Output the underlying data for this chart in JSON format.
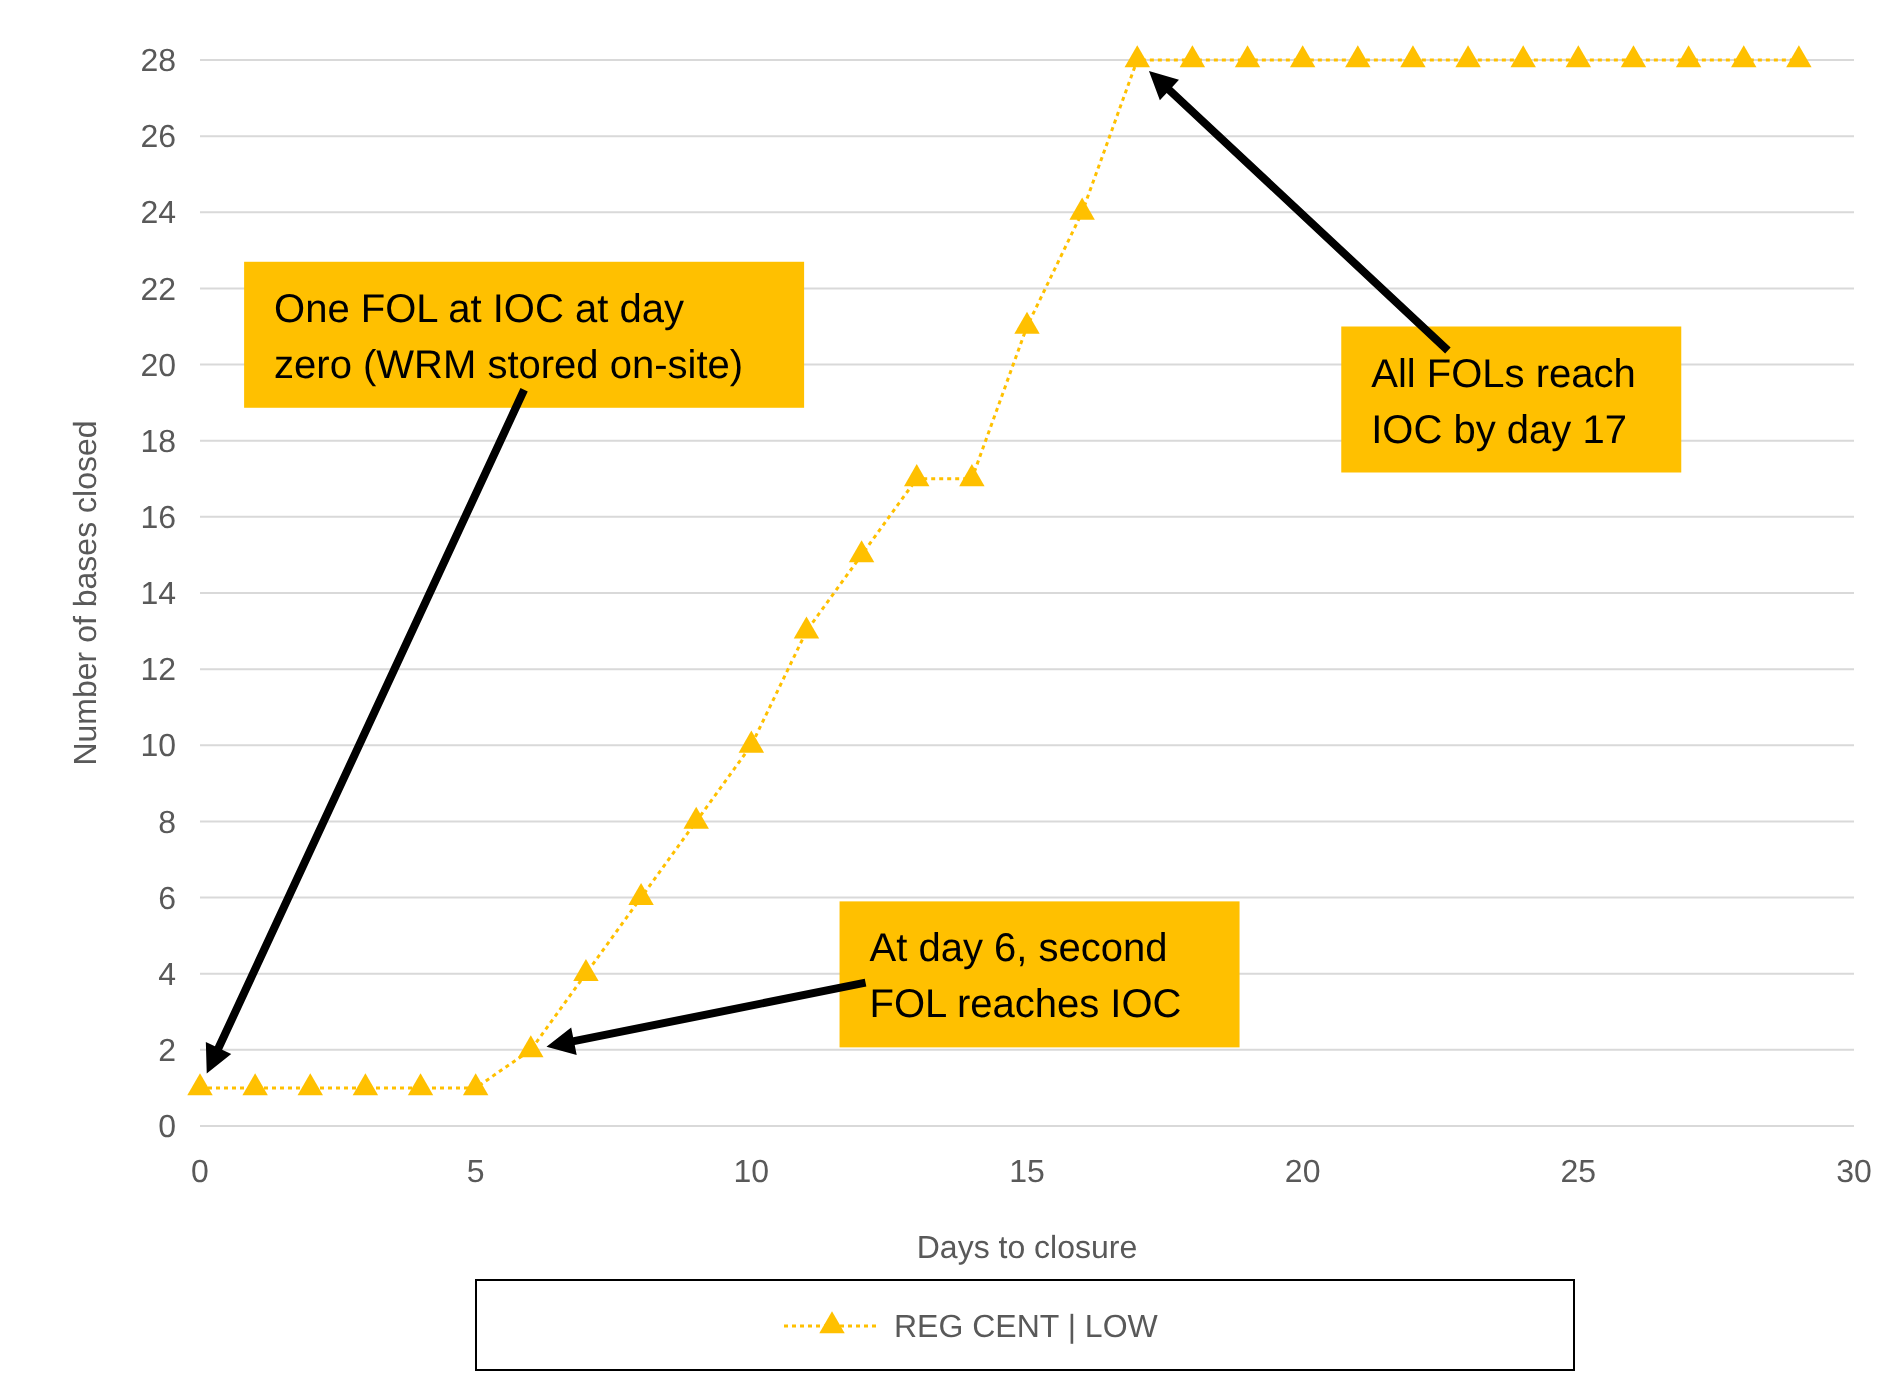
{
  "chart_data": {
    "type": "line",
    "xlabel": "Days to closure",
    "ylabel": "Number of bases closed",
    "x": [
      0,
      1,
      2,
      3,
      4,
      5,
      6,
      7,
      8,
      9,
      10,
      11,
      12,
      13,
      14,
      15,
      16,
      17,
      18,
      19,
      20,
      21,
      22,
      23,
      24,
      25,
      26,
      27,
      28,
      29
    ],
    "series": [
      {
        "name": "REG CENT | LOW",
        "color": "#ffc000",
        "values": [
          1,
          1,
          1,
          1,
          1,
          1,
          2,
          4,
          6,
          8,
          10,
          13,
          15,
          17,
          17,
          21,
          24,
          28,
          28,
          28,
          28,
          28,
          28,
          28,
          28,
          28,
          28,
          28,
          28,
          28
        ]
      }
    ],
    "xlim": [
      0,
      30
    ],
    "xticks": [
      0,
      5,
      10,
      15,
      20,
      25,
      30
    ],
    "ylim": [
      0,
      28
    ],
    "yticks": [
      0,
      2,
      4,
      6,
      8,
      10,
      12,
      14,
      16,
      18,
      20,
      22,
      24,
      26,
      28
    ],
    "grid": "y",
    "legend": "bottom",
    "marker": "triangle",
    "line_style": "dotted",
    "annotations": [
      "One FOL at IOC at day zero (WRM stored on-site)",
      "At day 6, second FOL reaches IOC",
      "All FOLs reach IOC by day 17"
    ]
  }
}
